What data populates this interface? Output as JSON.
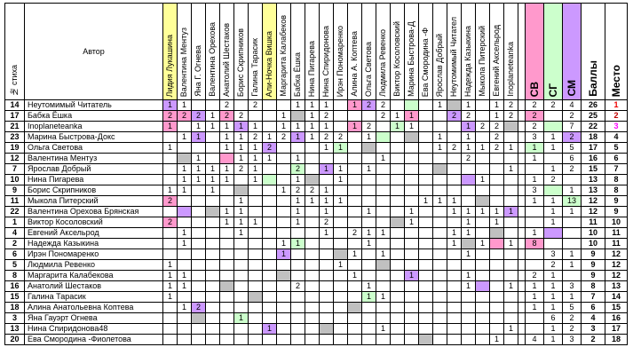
{
  "header": {
    "num": "№ стиха",
    "author": "Автор",
    "judges": [
      "Лидия Лукашина",
      "Валентина Ментуз",
      "Яна Г. Огнева",
      "Валентина Орехова",
      "Анатолий Шестаков",
      "Борис Скрипников",
      "Галина Тарасик",
      "Али-Ночка Вишка",
      "Маргарита Калабеков",
      "Бабка Ёшка",
      "Нина Пигарева",
      "Нина Спиридонова",
      "Ирэн Пономаренко",
      "Алина А. Коптева",
      "Ольга Светова",
      "Людмила Ревенко",
      "Виктор Косоловский",
      "Марина Быстрова-Д",
      "Ева Смородина -Ф",
      "Ярослав Добрый",
      "Неутомимый Читател",
      "Надежда Казыкина",
      "Мыкола Питерский",
      "Евгений Аксельрод",
      "Inoplaneteanka"
    ],
    "highlight": [
      0,
      7
    ],
    "sv": "СВ",
    "sg": "СГ",
    "sm": "СМ",
    "score": "Баллы",
    "place": "Место"
  },
  "rows": [
    {
      "num": 14,
      "author": "Неутомимый Читатель",
      "votes": [
        1,
        1,
        null,
        null,
        2,
        null,
        2,
        null,
        null,
        1,
        1,
        1,
        null,
        1,
        2,
        2,
        null,
        null,
        null,
        1,
        null,
        1,
        null,
        1,
        2
      ],
      "sv": 2,
      "sg": 2,
      "sm": 4,
      "score": 26,
      "place": 1,
      "gray": 20,
      "pink": [
        13
      ],
      "violet": [
        0,
        14
      ],
      "green": [
        17
      ]
    },
    {
      "num": 17,
      "author": "Бабка Ёшка",
      "votes": [
        2,
        2,
        2,
        1,
        2,
        2,
        null,
        null,
        1,
        null,
        1,
        2,
        null,
        null,
        null,
        2,
        1,
        1,
        null,
        null,
        2,
        2,
        null,
        1,
        2
      ],
      "sv": 2,
      "sg": null,
      "sm": 2,
      "score": 25,
      "place": 2,
      "gray": 9,
      "pink": [
        0,
        1,
        4,
        17,
        25
      ],
      "violet": [
        2,
        20
      ],
      "green": []
    },
    {
      "num": 21,
      "author": "Inoplaneteanka",
      "votes": [
        1,
        null,
        1,
        1,
        1,
        1,
        1,
        null,
        1,
        1,
        1,
        1,
        null,
        1,
        2,
        null,
        1,
        1,
        null,
        null,
        null,
        1,
        2,
        2,
        null
      ],
      "sv": 2,
      "sg": null,
      "sm": 7,
      "score": 22,
      "place": 3,
      "gray": 24,
      "pink": [
        0,
        13
      ],
      "violet": [
        5,
        21
      ],
      "green": [
        16,
        26
      ]
    },
    {
      "num": 23,
      "author": "Марина Быстрова-Докс",
      "votes": [
        null,
        1,
        1,
        null,
        1,
        1,
        2,
        1,
        2,
        1,
        1,
        2,
        2,
        null,
        1,
        null,
        null,
        null,
        null,
        1,
        null,
        1,
        null,
        2,
        null
      ],
      "sv": 3,
      "sg": 1,
      "sm": 2,
      "score": 18,
      "place": 4,
      "gray": 17,
      "pink": [],
      "violet": [
        2,
        9,
        27
      ],
      "green": [
        15
      ]
    },
    {
      "num": 19,
      "author": "Ольга Светова",
      "votes": [
        1,
        null,
        null,
        null,
        1,
        1,
        1,
        2,
        null,
        null,
        null,
        1,
        1,
        null,
        null,
        null,
        null,
        null,
        null,
        1,
        2,
        1,
        1,
        2,
        1
      ],
      "sv": 1,
      "sg": 1,
      "sm": 5,
      "score": 17,
      "place": 5,
      "gray": 14,
      "pink": [],
      "violet": [
        7
      ],
      "green": [
        12,
        25
      ]
    },
    {
      "num": 12,
      "author": "Валентина Ментуз",
      "votes": [
        null,
        null,
        1,
        null,
        null,
        1,
        1,
        1,
        null,
        1,
        null,
        null,
        null,
        null,
        null,
        1,
        null,
        null,
        null,
        null,
        null,
        2,
        null,
        null,
        null
      ],
      "sv": 1,
      "sg": null,
      "sm": 6,
      "score": 16,
      "place": 6,
      "gray": 1,
      "pink": [
        4
      ],
      "violet": [],
      "green": []
    },
    {
      "num": 7,
      "author": "Ярослав Добрый",
      "votes": [
        null,
        1,
        1,
        1,
        1,
        2,
        1,
        null,
        null,
        2,
        null,
        1,
        1,
        null,
        1,
        null,
        null,
        null,
        null,
        null,
        null,
        null,
        null,
        null,
        1
      ],
      "sv": null,
      "sg": 1,
      "sm": 2,
      "score": 15,
      "place": 7,
      "gray": 19,
      "pink": [],
      "violet": [
        11
      ],
      "green": [
        9
      ]
    },
    {
      "num": 10,
      "author": "Нина Пигарева",
      "votes": [
        null,
        1,
        1,
        1,
        1,
        null,
        1,
        null,
        null,
        1,
        null,
        null,
        1,
        null,
        null,
        null,
        null,
        null,
        null,
        null,
        null,
        null,
        1,
        null,
        null
      ],
      "sv": 1,
      "sg": 2,
      "sm": null,
      "score": 13,
      "place": 8,
      "gray": 10,
      "pink": [],
      "violet": [
        21
      ],
      "green": [
        7
      ]
    },
    {
      "num": 9,
      "author": "Борис Скрипников",
      "votes": [
        1,
        1,
        null,
        1,
        null,
        null,
        null,
        null,
        1,
        2,
        2,
        1,
        null,
        null,
        null,
        null,
        null,
        null,
        null,
        null,
        null,
        null,
        null,
        null,
        null
      ],
      "sv": 3,
      "sg": null,
      "sm": 1,
      "score": 13,
      "place": 8,
      "gray": 5,
      "pink": [],
      "violet": [],
      "green": [
        26
      ]
    },
    {
      "num": 11,
      "author": "Мыкола Питерский",
      "votes": [
        2,
        null,
        null,
        null,
        null,
        1,
        null,
        null,
        null,
        1,
        1,
        1,
        1,
        null,
        null,
        null,
        null,
        null,
        1,
        1,
        1,
        null,
        null,
        null,
        null
      ],
      "sv": 1,
      "sg": 1,
      "sm": 13,
      "score": 12,
      "place": 9,
      "gray": 22,
      "pink": [
        0
      ],
      "violet": [],
      "green": [
        27
      ]
    },
    {
      "num": 22,
      "author": "Валентина Орехова Брянская",
      "votes": [
        null,
        null,
        null,
        null,
        1,
        1,
        null,
        null,
        null,
        1,
        null,
        1,
        null,
        null,
        1,
        null,
        null,
        1,
        null,
        null,
        1,
        1,
        1,
        1,
        1
      ],
      "sv": null,
      "sg": 1,
      "sm": 1,
      "score": 12,
      "place": 9,
      "gray": 3,
      "pink": [],
      "violet": [
        1,
        24
      ],
      "green": []
    },
    {
      "num": 1,
      "author": "Виктор Косоловский",
      "votes": [
        2,
        null,
        null,
        null,
        1,
        1,
        1,
        null,
        null,
        1,
        null,
        2,
        null,
        null,
        null,
        null,
        null,
        1,
        null,
        null,
        null,
        1,
        null,
        1,
        null
      ],
      "sv": null,
      "sg": 1,
      "sm": null,
      "score": 11,
      "place": 10,
      "gray": 16,
      "pink": [
        0
      ],
      "violet": [],
      "green": []
    },
    {
      "num": 4,
      "author": "Евгений Аксельрод",
      "votes": [
        null,
        1,
        null,
        null,
        null,
        1,
        null,
        null,
        null,
        null,
        null,
        1,
        null,
        2,
        1,
        1,
        null,
        null,
        null,
        null,
        1,
        1,
        null,
        null,
        null
      ],
      "sv": 1,
      "sg": null,
      "sm": null,
      "score": 10,
      "place": 11,
      "gray": 23,
      "pink": [],
      "violet": [
        26
      ],
      "green": []
    },
    {
      "num": 2,
      "author": "Надежда Казыкина",
      "votes": [
        null,
        1,
        null,
        null,
        null,
        null,
        null,
        null,
        1,
        1,
        null,
        null,
        null,
        null,
        1,
        null,
        null,
        null,
        null,
        null,
        1,
        null,
        1,
        null,
        1
      ],
      "sv": 8,
      "sg": null,
      "sm": null,
      "score": 10,
      "place": 11,
      "gray": 21,
      "pink": [
        23,
        25
      ],
      "violet": [],
      "green": [
        9
      ]
    },
    {
      "num": 6,
      "author": "Ирэн Пономаренко",
      "votes": [
        null,
        null,
        null,
        null,
        null,
        null,
        null,
        null,
        1,
        null,
        null,
        null,
        null,
        1,
        null,
        1,
        null,
        null,
        null,
        null,
        null,
        1,
        null,
        null,
        null
      ],
      "sv": null,
      "sg": 3,
      "sm": 1,
      "score": 9,
      "place": 12,
      "gray": 12,
      "pink": [],
      "violet": [
        8
      ],
      "green": []
    },
    {
      "num": 5,
      "author": "Людмила Ревенко",
      "votes": [
        1,
        null,
        null,
        null,
        null,
        null,
        null,
        null,
        null,
        null,
        null,
        null,
        1,
        null,
        null,
        null,
        null,
        null,
        null,
        null,
        null,
        null,
        null,
        null,
        null
      ],
      "sv": null,
      "sg": 2,
      "sm": 1,
      "score": 9,
      "place": 12,
      "gray": 15,
      "pink": [],
      "violet": [],
      "green": []
    },
    {
      "num": 8,
      "author": "Маргарита Калабекова",
      "votes": [
        1,
        1,
        null,
        null,
        null,
        null,
        null,
        null,
        null,
        null,
        null,
        null,
        null,
        1,
        null,
        null,
        null,
        1,
        null,
        null,
        null,
        1,
        null,
        null,
        null
      ],
      "sv": 2,
      "sg": 1,
      "sm": null,
      "score": 9,
      "place": 12,
      "gray": 8,
      "pink": [],
      "violet": [
        17
      ],
      "green": []
    },
    {
      "num": 16,
      "author": "Анатолий Шестаков",
      "votes": [
        1,
        1,
        null,
        null,
        null,
        null,
        null,
        null,
        null,
        2,
        null,
        null,
        null,
        null,
        1,
        null,
        null,
        null,
        null,
        null,
        null,
        1,
        null,
        null,
        1
      ],
      "sv": 1,
      "sg": 1,
      "sm": 3,
      "score": 8,
      "place": 13,
      "gray": 4,
      "pink": [],
      "violet": [
        22
      ],
      "green": []
    },
    {
      "num": 15,
      "author": "Галина Тарасик",
      "votes": [
        1,
        null,
        null,
        null,
        null,
        null,
        null,
        null,
        null,
        null,
        null,
        null,
        null,
        null,
        1,
        1,
        null,
        null,
        null,
        null,
        null,
        null,
        null,
        null,
        null
      ],
      "sv": 1,
      "sg": 1,
      "sm": 1,
      "score": 7,
      "place": 14,
      "gray": 6,
      "pink": [],
      "violet": [],
      "green": [
        14
      ]
    },
    {
      "num": 18,
      "author": "Алина Анатольевна Коптева",
      "votes": [
        null,
        1,
        2,
        null,
        null,
        null,
        null,
        null,
        null,
        null,
        null,
        null,
        null,
        null,
        null,
        null,
        null,
        null,
        null,
        null,
        null,
        null,
        null,
        null,
        null
      ],
      "sv": 1,
      "sg": 1,
      "sm": 5,
      "score": 6,
      "place": 15,
      "gray": 13,
      "pink": [],
      "violet": [
        2
      ],
      "green": []
    },
    {
      "num": 3,
      "author": "Яна Гауэрт Огнева",
      "votes": [
        null,
        null,
        null,
        null,
        null,
        1,
        null,
        null,
        null,
        null,
        null,
        null,
        null,
        null,
        null,
        null,
        null,
        null,
        null,
        null,
        null,
        null,
        null,
        null,
        null
      ],
      "sv": null,
      "sg": 6,
      "sm": 2,
      "score": 4,
      "place": 16,
      "gray": 2,
      "pink": [],
      "violet": [],
      "green": [
        5
      ]
    },
    {
      "num": 13,
      "author": "Нина Спиридонова48",
      "votes": [
        null,
        null,
        null,
        null,
        null,
        null,
        null,
        1,
        null,
        null,
        null,
        null,
        null,
        null,
        null,
        1,
        null,
        null,
        null,
        null,
        null,
        null,
        null,
        null,
        1
      ],
      "sv": null,
      "sg": 1,
      "sm": 2,
      "score": 3,
      "place": 17,
      "gray": 11,
      "pink": [],
      "violet": [
        7
      ],
      "green": []
    },
    {
      "num": 20,
      "author": "Ева Смородина -Фиолетова",
      "votes": [
        null,
        null,
        null,
        null,
        null,
        null,
        null,
        null,
        null,
        null,
        null,
        null,
        null,
        null,
        null,
        null,
        null,
        null,
        null,
        null,
        null,
        null,
        null,
        1,
        null
      ],
      "sv": 4,
      "sg": 1,
      "sm": 3,
      "score": 2,
      "place": 18,
      "gray": 18,
      "pink": [],
      "violet": [],
      "green": []
    }
  ]
}
